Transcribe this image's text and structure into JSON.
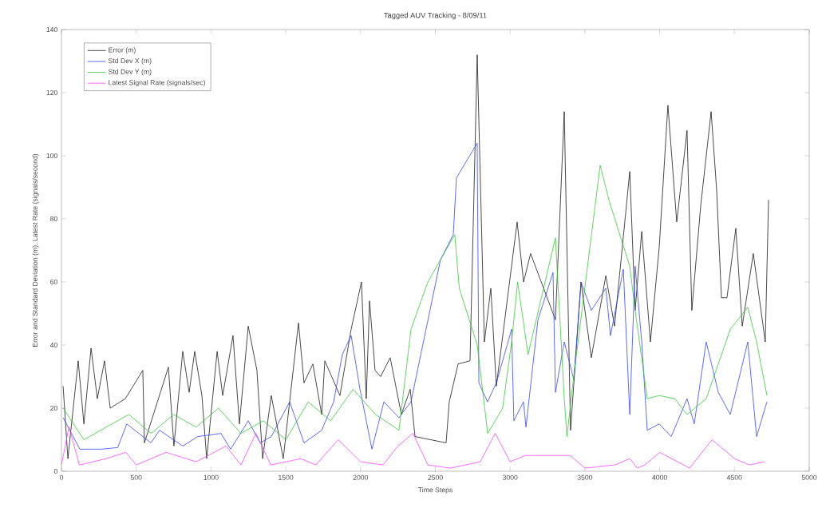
{
  "chart_data": {
    "type": "line",
    "title": "Tagged AUV Tracking - 8/09/11",
    "xlabel": "Time Steps",
    "ylabel": "Error and Standard Deviation (m), Latest Rate (signals/second)",
    "xlim": [
      0,
      5000
    ],
    "xticks": [
      0,
      500,
      1000,
      1500,
      2000,
      2500,
      3000,
      3500,
      4000,
      4500,
      5000
    ],
    "ylim": [
      0,
      140
    ],
    "yticks": [
      0,
      20,
      40,
      60,
      80,
      100,
      120,
      140
    ],
    "legend": "top left",
    "series": [
      {
        "name": "Error (m)",
        "color": "#1a1a1a",
        "x": [
          11,
          43,
          112,
          150,
          198,
          240,
          288,
          326,
          427,
          544,
          555,
          715,
          752,
          811,
          854,
          891,
          939,
          971,
          1041,
          1078,
          1147,
          1190,
          1249,
          1307,
          1345,
          1403,
          1483,
          1585,
          1622,
          1681,
          1740,
          1761,
          1862,
          1937,
          2006,
          2038,
          2060,
          2097,
          2134,
          2198,
          2273,
          2332,
          2364,
          2572,
          2593,
          2652,
          2732,
          2780,
          2828,
          2871,
          2908,
          3047,
          3090,
          3137,
          3303,
          3362,
          3404,
          3474,
          3543,
          3640,
          3698,
          3800,
          3836,
          3880,
          3938,
          3997,
          4055,
          4114,
          4183,
          4215,
          4274,
          4344,
          4381,
          4413,
          4450,
          4509,
          4552,
          4626,
          4706,
          4728
        ],
        "values": [
          27,
          4,
          35,
          15,
          39,
          23,
          35,
          20,
          23,
          32,
          9,
          33,
          8,
          38,
          25,
          38,
          24,
          4,
          38,
          24,
          43,
          15,
          46,
          32,
          4,
          24,
          4,
          47,
          28,
          34,
          18,
          35,
          24,
          45,
          60,
          23,
          54,
          32,
          30,
          36,
          18,
          26,
          11,
          9,
          22,
          34,
          35,
          132,
          41,
          58,
          27,
          79,
          60,
          69,
          48,
          114,
          13,
          60,
          36,
          62,
          46,
          95,
          51,
          76,
          41,
          71,
          116,
          79,
          108,
          51,
          84,
          114,
          89,
          55,
          55,
          77,
          46,
          69,
          41,
          86
        ]
      },
      {
        "name": "Std Dev X (m)",
        "color": "#3344ff",
        "x": [
          11,
          123,
          267,
          376,
          437,
          598,
          656,
          811,
          912,
          1067,
          1131,
          1249,
          1329,
          1403,
          1526,
          1622,
          1740,
          1820,
          1878,
          1937,
          1996,
          2076,
          2156,
          2257,
          2337,
          2534,
          2620,
          2641,
          2780,
          2791,
          2849,
          2908,
          3010,
          3025,
          3089,
          3106,
          3186,
          3287,
          3303,
          3362,
          3426,
          3474,
          3543,
          3640,
          3671,
          3757,
          3800,
          3836,
          3880,
          3917,
          3997,
          4077,
          4183,
          4231,
          4311,
          4392,
          4472,
          4589,
          4648,
          4717
        ],
        "values": [
          17,
          7,
          7,
          7.5,
          15,
          9,
          13,
          8,
          11,
          12,
          7,
          16,
          9,
          11,
          22,
          9,
          13,
          22,
          37,
          43,
          26,
          7,
          22,
          17,
          22,
          67,
          75,
          93,
          104,
          28,
          22,
          28,
          45,
          16,
          22,
          14,
          48,
          63,
          25,
          41,
          29,
          60,
          51,
          58,
          43,
          64,
          18,
          65,
          41,
          13,
          15,
          11,
          23,
          15,
          41,
          25,
          18,
          41,
          11,
          22
        ]
      },
      {
        "name": "Std Dev Y (m)",
        "color": "#33cc33",
        "x": [
          11,
          150,
          300,
          450,
          600,
          750,
          900,
          1050,
          1200,
          1350,
          1500,
          1650,
          1800,
          1950,
          2100,
          2257,
          2337,
          2450,
          2630,
          2660,
          2780,
          2850,
          2950,
          3010,
          3050,
          3120,
          3303,
          3362,
          3380,
          3420,
          3602,
          3660,
          3800,
          3836,
          3917,
          3997,
          4100,
          4183,
          4311,
          4472,
          4589,
          4648,
          4717
        ],
        "values": [
          20,
          10,
          14,
          18,
          12,
          18,
          14,
          20,
          12,
          16,
          10,
          22,
          16,
          26,
          18,
          13,
          45,
          60,
          75,
          58,
          40,
          12,
          20,
          41,
          60,
          37,
          74,
          23,
          11,
          28,
          97,
          86,
          65,
          51,
          23,
          24,
          23,
          18,
          23,
          45,
          52,
          41,
          24
        ]
      },
      {
        "name": "Latest Signal Rate (signals/sec)",
        "color": "#ff44ff",
        "x": [
          0,
          50,
          120,
          300,
          430,
          500,
          700,
          900,
          1100,
          1200,
          1300,
          1400,
          1600,
          1700,
          1850,
          2000,
          2150,
          2250,
          2350,
          2450,
          2600,
          2700,
          2800,
          2900,
          3000,
          3100,
          3400,
          3500,
          3700,
          3800,
          3850,
          3900,
          4000,
          4200,
          4350,
          4500,
          4600,
          4700
        ],
        "values": [
          2,
          14,
          2,
          4,
          6,
          2,
          6,
          3,
          8,
          2,
          12,
          2,
          4,
          2,
          10,
          3,
          2,
          8,
          12,
          2,
          1,
          2,
          3,
          12,
          3,
          5,
          5,
          1,
          2,
          4,
          1,
          2,
          6,
          1,
          10,
          4,
          2,
          3
        ]
      }
    ]
  }
}
